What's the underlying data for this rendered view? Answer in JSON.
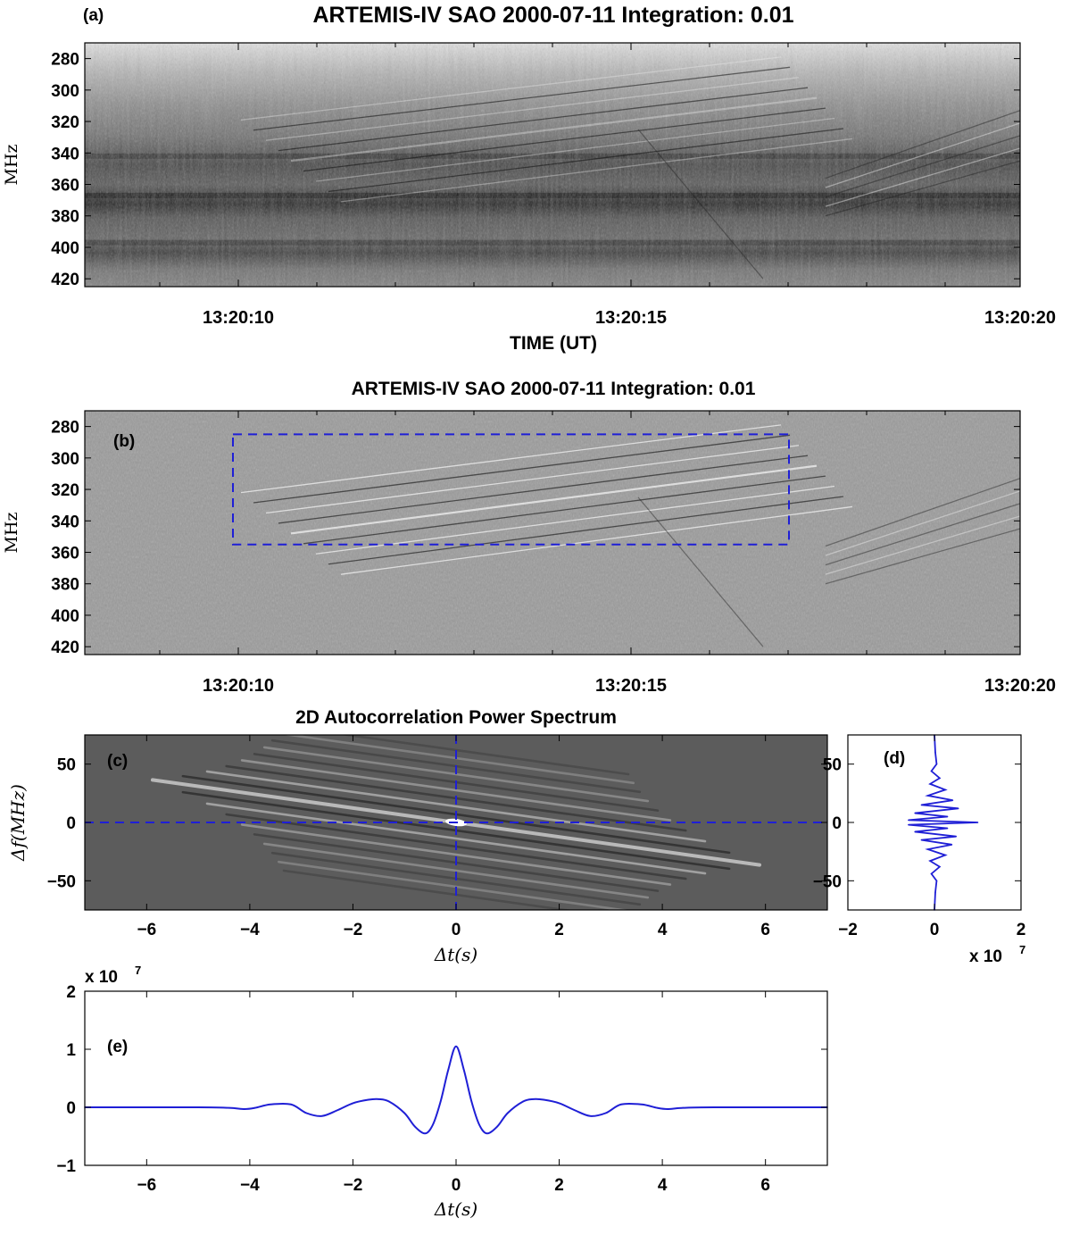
{
  "chart_data": [
    {
      "panel": "a",
      "type": "heatmap",
      "panel_label": "(a)",
      "title": "ARTEMIS-IV  SAO 2000-07-11   Integration: 0.01",
      "xlabel": "TIME (UT)",
      "ylabel": "MHz",
      "x_tick_labels": [
        "13:20:10",
        "13:20:15",
        "13:20:20"
      ],
      "y_ticks": [
        280,
        300,
        320,
        340,
        360,
        380,
        400,
        420
      ],
      "ylim": [
        270,
        425
      ],
      "colormap": "gray",
      "features": {
        "dark_bands_mhz": [
          342,
          367,
          397
        ],
        "drifting_fine_structure_from_mhz": 345,
        "drifting_fine_structure_to_mhz": 305
      }
    },
    {
      "panel": "b",
      "type": "heatmap",
      "panel_label": "(b)",
      "title": "ARTEMIS-IV  SAO 2000-07-11   Integration: 0.01",
      "xlabel": "",
      "ylabel": "MHz",
      "x_tick_labels": [
        "13:20:10",
        "13:20:15",
        "13:20:20"
      ],
      "y_ticks": [
        280,
        300,
        320,
        340,
        360,
        380,
        400,
        420
      ],
      "ylim": [
        270,
        425
      ],
      "colormap": "gray",
      "selection_box": {
        "style": "dashed",
        "color": "#1f1fd6",
        "freq_range_mhz": [
          285,
          355
        ]
      }
    },
    {
      "panel": "c",
      "type": "heatmap",
      "panel_label": "(c)",
      "title": "2D Autocorrelation Power Spectrum",
      "xlabel": "Δt(s)",
      "ylabel": "Δf(MHz)",
      "x_ticks": [
        -6,
        -4,
        -2,
        0,
        2,
        4,
        6
      ],
      "y_ticks": [
        50,
        0,
        -50
      ],
      "xlim": [
        -7.2,
        7.2
      ],
      "ylim": [
        -75,
        75
      ],
      "colormap": "gray",
      "crosshair": {
        "x": 0,
        "y": 0,
        "style": "dashed",
        "color": "#1f1fd6"
      }
    },
    {
      "panel": "d",
      "type": "line",
      "panel_label": "(d)",
      "orientation": "vertical",
      "xlabel": "",
      "ylabel": "",
      "multiplier_label": "x 10",
      "multiplier_exponent": "7",
      "x_ticks": [
        -2,
        0,
        2
      ],
      "y_ticks": [
        50,
        0,
        -50
      ],
      "xlim": [
        -2,
        2
      ],
      "ylim": [
        -75,
        75
      ],
      "color": "#1f1fd6",
      "series": [
        {
          "df_mhz": [
            75,
            60,
            50,
            44,
            38,
            33,
            28,
            23,
            19,
            15,
            12,
            8,
            5,
            2,
            0,
            -2,
            -5,
            -8,
            -12,
            -15,
            -19,
            -23,
            -28,
            -33,
            -38,
            -44,
            -50,
            -60,
            -75
          ],
          "value_x1e7": [
            0,
            0.02,
            0.05,
            -0.07,
            0.12,
            -0.1,
            0.25,
            -0.15,
            0.42,
            -0.3,
            0.55,
            -0.45,
            0.3,
            -0.6,
            1.0,
            -0.6,
            0.3,
            -0.45,
            0.5,
            -0.3,
            0.4,
            -0.15,
            0.25,
            -0.1,
            0.12,
            -0.07,
            0.05,
            0.02,
            0
          ]
        }
      ]
    },
    {
      "panel": "e",
      "type": "line",
      "panel_label": "(e)",
      "xlabel": "Δt(s)",
      "ylabel": "",
      "multiplier_label": "x 10",
      "multiplier_exponent": "7",
      "x_ticks": [
        -6,
        -4,
        -2,
        0,
        2,
        4,
        6
      ],
      "y_ticks": [
        2,
        1,
        0,
        -1
      ],
      "xlim": [
        -7.2,
        7.2
      ],
      "ylim": [
        -1,
        2
      ],
      "color": "#1f1fd6",
      "series": [
        {
          "dt_s": [
            -7.2,
            -5.0,
            -4.4,
            -4.1,
            -3.9,
            -3.6,
            -3.2,
            -2.9,
            -2.6,
            -2.3,
            -2.0,
            -1.7,
            -1.5,
            -1.3,
            -1.0,
            -0.8,
            -0.6,
            -0.45,
            -0.3,
            -0.15,
            0.0,
            0.15,
            0.3,
            0.45,
            0.6,
            0.8,
            1.0,
            1.3,
            1.5,
            1.7,
            2.0,
            2.3,
            2.6,
            2.9,
            3.2,
            3.6,
            3.9,
            4.1,
            4.4,
            5.0,
            7.2
          ],
          "value_x1e7": [
            0.0,
            0.0,
            -0.01,
            -0.03,
            -0.01,
            0.05,
            0.05,
            -0.1,
            -0.15,
            -0.05,
            0.07,
            0.13,
            0.14,
            0.1,
            -0.1,
            -0.33,
            -0.45,
            -0.3,
            0.1,
            0.65,
            1.05,
            0.65,
            0.1,
            -0.3,
            -0.45,
            -0.33,
            -0.1,
            0.1,
            0.14,
            0.13,
            0.07,
            -0.05,
            -0.15,
            -0.1,
            0.05,
            0.05,
            -0.01,
            -0.03,
            -0.01,
            0.0,
            0.0
          ]
        }
      ]
    }
  ]
}
